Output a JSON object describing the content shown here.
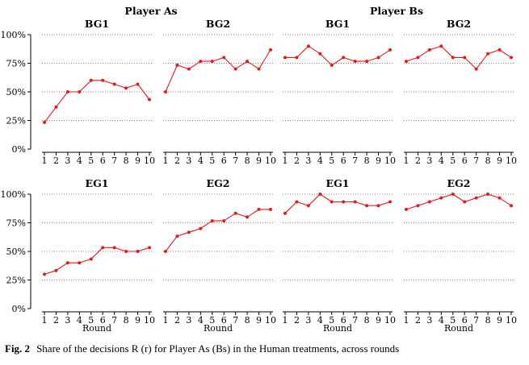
{
  "figure": {
    "caption_label": "Fig. 2",
    "caption_text": "Share of the decisions R (r) for Player As (Bs) in the Human treatments, across rounds",
    "group_titles": [
      "Player As",
      "Player Bs"
    ],
    "colors": {
      "line": "#e41a1c",
      "axis": "#000000",
      "grid": "#555555"
    }
  },
  "chart_data": [
    {
      "type": "line",
      "group": "Player As",
      "title": "BG1",
      "xlabel": "",
      "x": [
        1,
        2,
        3,
        4,
        5,
        6,
        7,
        8,
        9,
        10
      ],
      "values": [
        23.3,
        36.7,
        50,
        50,
        60,
        60,
        56.7,
        53.3,
        56.7,
        43.3
      ],
      "ylim": [
        0,
        100
      ],
      "yticks": [
        "0%",
        "25%",
        "50%",
        "75%",
        "100%"
      ],
      "grid": true
    },
    {
      "type": "line",
      "group": "Player As",
      "title": "BG2",
      "xlabel": "",
      "x": [
        1,
        2,
        3,
        4,
        5,
        6,
        7,
        8,
        9,
        10
      ],
      "values": [
        50,
        73.3,
        70,
        76.7,
        76.7,
        80,
        70,
        76.7,
        70,
        86.7
      ],
      "ylim": [
        0,
        100
      ],
      "grid": true
    },
    {
      "type": "line",
      "group": "Player Bs",
      "title": "BG1",
      "xlabel": "",
      "x": [
        1,
        2,
        3,
        4,
        5,
        6,
        7,
        8,
        9,
        10
      ],
      "values": [
        80,
        80,
        90,
        83.3,
        73.3,
        80,
        76.7,
        76.7,
        80,
        86.7
      ],
      "ylim": [
        0,
        100
      ],
      "grid": true
    },
    {
      "type": "line",
      "group": "Player Bs",
      "title": "BG2",
      "xlabel": "",
      "x": [
        1,
        2,
        3,
        4,
        5,
        6,
        7,
        8,
        9,
        10
      ],
      "values": [
        76.7,
        80,
        86.7,
        90,
        80,
        80,
        70,
        83.3,
        86.7,
        80
      ],
      "ylim": [
        0,
        100
      ],
      "grid": true
    },
    {
      "type": "line",
      "group": "Player As",
      "title": "EG1",
      "xlabel": "Round",
      "x": [
        1,
        2,
        3,
        4,
        5,
        6,
        7,
        8,
        9,
        10
      ],
      "values": [
        30,
        33.3,
        40,
        40,
        43.3,
        53.3,
        53.3,
        50,
        50,
        53.3
      ],
      "ylim": [
        0,
        100
      ],
      "yticks": [
        "0%",
        "25%",
        "50%",
        "75%",
        "100%"
      ],
      "grid": true
    },
    {
      "type": "line",
      "group": "Player As",
      "title": "EG2",
      "xlabel": "Round",
      "x": [
        1,
        2,
        3,
        4,
        5,
        6,
        7,
        8,
        9,
        10
      ],
      "values": [
        50,
        63.3,
        66.7,
        70,
        76.7,
        76.7,
        83.3,
        80,
        86.7,
        86.7
      ],
      "ylim": [
        0,
        100
      ],
      "grid": true
    },
    {
      "type": "line",
      "group": "Player Bs",
      "title": "EG1",
      "xlabel": "Round",
      "x": [
        1,
        2,
        3,
        4,
        5,
        6,
        7,
        8,
        9,
        10
      ],
      "values": [
        83.3,
        93.3,
        90,
        100,
        93.3,
        93.3,
        93.3,
        90,
        90,
        93.3
      ],
      "ylim": [
        0,
        100
      ],
      "grid": true
    },
    {
      "type": "line",
      "group": "Player Bs",
      "title": "EG2",
      "xlabel": "Round",
      "x": [
        1,
        2,
        3,
        4,
        5,
        6,
        7,
        8,
        9,
        10
      ],
      "values": [
        86.7,
        90,
        93.3,
        96.7,
        100,
        93.3,
        96.7,
        100,
        96.7,
        90
      ],
      "ylim": [
        0,
        100
      ],
      "grid": true
    }
  ]
}
